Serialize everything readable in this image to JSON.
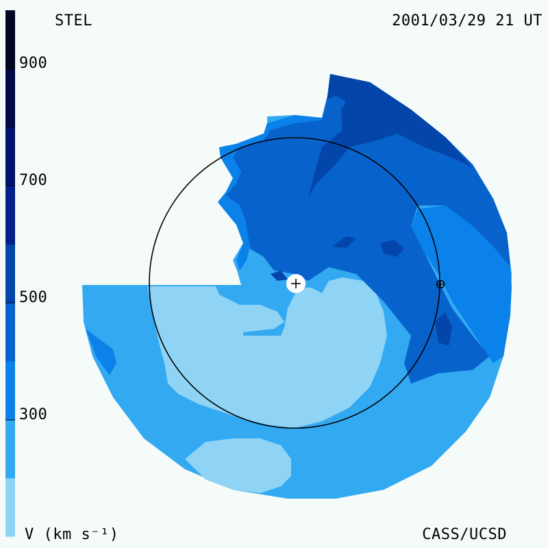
{
  "header": {
    "source_label": "STEL",
    "timestamp": "2001/03/29 21 UT"
  },
  "footer": {
    "legend_label": "V (km s⁻¹)",
    "credit": "CASS/UCSD"
  },
  "colorbar": {
    "tick_labels": [
      "900",
      "700",
      "500",
      "300"
    ],
    "tick_values": [
      900,
      700,
      500,
      300
    ],
    "levels": [
      {
        "from": 100,
        "to": 200,
        "color": "#8fd3f5"
      },
      {
        "from": 200,
        "to": 300,
        "color": "#33a9f2"
      },
      {
        "from": 300,
        "to": 400,
        "color": "#0a82ea"
      },
      {
        "from": 400,
        "to": 500,
        "color": "#0762cc"
      },
      {
        "from": 500,
        "to": 600,
        "color": "#0345a8"
      },
      {
        "from": 600,
        "to": 700,
        "color": "#021f8a"
      },
      {
        "from": 700,
        "to": 800,
        "color": "#01126a"
      },
      {
        "from": 800,
        "to": 900,
        "color": "#010a44"
      },
      {
        "from": 900,
        "to": 1000,
        "color": "#000522"
      }
    ]
  },
  "colors": {
    "background": "#f5fbf8",
    "earth_orbit": "#000000",
    "sun_marker": "#ffffff"
  },
  "markers": {
    "sun": "sun-marker",
    "earth": "earth-marker"
  }
}
